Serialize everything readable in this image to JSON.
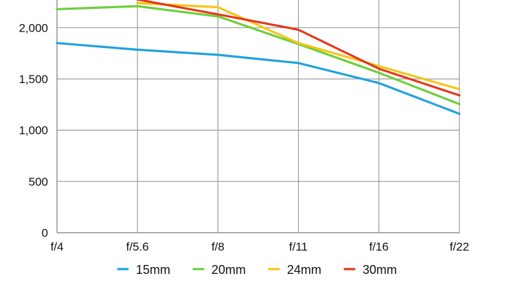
{
  "chart_data": {
    "type": "line",
    "title": "",
    "xlabel": "",
    "ylabel": "",
    "categories": [
      "f/4",
      "f/5.6",
      "f/8",
      "f/11",
      "f/16",
      "f/22"
    ],
    "y_ticks": [
      "0",
      "500",
      "1,000",
      "1,500",
      "2,000"
    ],
    "y_tick_values": [
      0,
      500,
      1000,
      1500,
      2000
    ],
    "ylim": [
      0,
      2270
    ],
    "grid": true,
    "legend_position": "bottom",
    "series": [
      {
        "name": "15mm",
        "color": "#1fa2e0",
        "values": [
          1850,
          1785,
          1735,
          1655,
          1460,
          1160
        ]
      },
      {
        "name": "20mm",
        "color": "#6ccf3a",
        "values": [
          2180,
          2210,
          2110,
          1840,
          1560,
          1255
        ]
      },
      {
        "name": "24mm",
        "color": "#f5c518",
        "values": [
          null,
          2240,
          2200,
          1850,
          1625,
          1400
        ]
      },
      {
        "name": "30mm",
        "color": "#e2391b",
        "values": [
          null,
          2275,
          2130,
          1980,
          1600,
          1340
        ]
      }
    ]
  }
}
